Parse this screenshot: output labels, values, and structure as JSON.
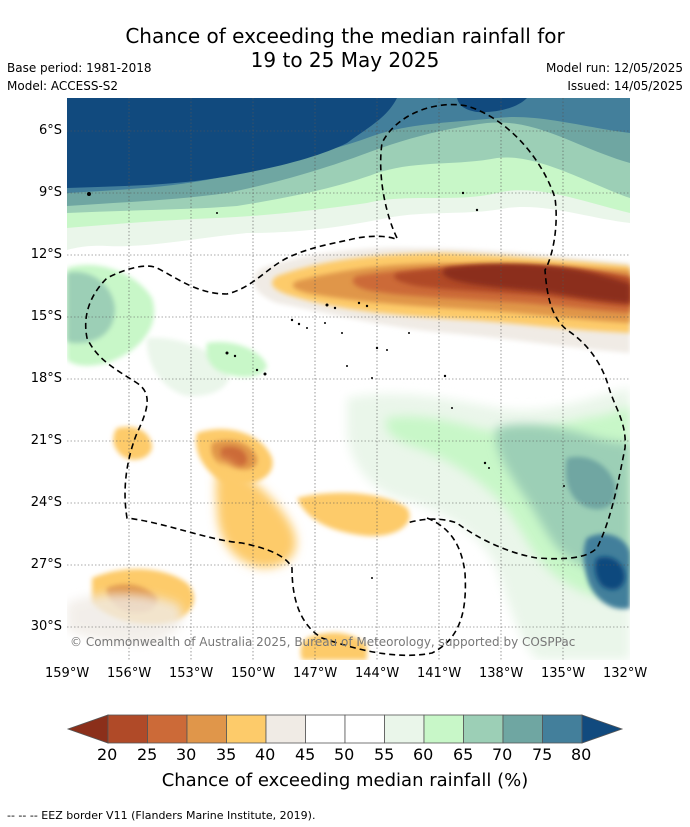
{
  "title": {
    "line1": "Chance of exceeding the median rainfall for",
    "line2": "19 to 25 May 2025"
  },
  "meta": {
    "base_period": "Base period: 1981-2018",
    "model": "Model: ACCESS-S2",
    "model_run": "Model run: 12/05/2025",
    "issued": "Issued: 14/05/2025"
  },
  "map": {
    "lat_labels": [
      "6°S",
      "9°S",
      "12°S",
      "15°S",
      "18°S",
      "21°S",
      "24°S",
      "27°S",
      "30°S"
    ],
    "lon_labels": [
      "159°W",
      "156°W",
      "153°W",
      "150°W",
      "147°W",
      "144°W",
      "141°W",
      "138°W",
      "135°W",
      "132°W"
    ],
    "copyright": "© Commonwealth of Australia 2025, Bureau of Meteorology, supported by COSPPac"
  },
  "colorbar": {
    "ticks": [
      "20",
      "25",
      "30",
      "35",
      "40",
      "45",
      "50",
      "55",
      "60",
      "65",
      "70",
      "75",
      "80"
    ],
    "colors": [
      "#8b2f1a",
      "#b04a28",
      "#cc6a38",
      "#e0964a",
      "#fdcb6a",
      "#f0ebe5",
      "#ffffff",
      "#ffffff",
      "#eaf6ea",
      "#c8f7c8",
      "#9ccfb6",
      "#6fa6a2",
      "#437f9b",
      "#114a7e"
    ],
    "label": "Chance of exceeding median rainfall (%)"
  },
  "footnote": "--  --  -- EEZ border V11 (Flanders Marine Institute, 2019)."
}
